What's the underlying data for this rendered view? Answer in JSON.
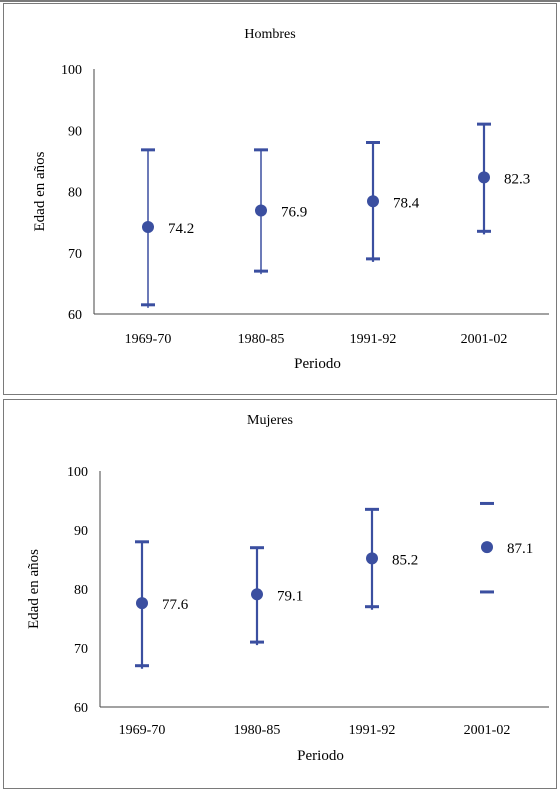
{
  "chart_data": [
    {
      "type": "scatter",
      "title": "Hombres",
      "xlabel": "Periodo",
      "ylabel": "Edad en años",
      "ylim": [
        60,
        100
      ],
      "yticks": [
        60,
        70,
        80,
        90,
        100
      ],
      "categories": [
        "1969-70",
        "1980-85",
        "1991-92",
        "2001-02"
      ],
      "values": [
        74.2,
        76.9,
        78.4,
        82.3
      ],
      "value_labels": [
        "74.2",
        "76.9",
        "78.4",
        "82.3"
      ],
      "lower": [
        61.5,
        67.0,
        69.0,
        73.5
      ],
      "upper": [
        86.8,
        86.8,
        88.0,
        91.0
      ],
      "error_bars": "vertical lines with horizontal caps",
      "grid": false,
      "color": "#3b4fa0"
    },
    {
      "type": "scatter",
      "title": "Mujeres",
      "xlabel": "Periodo",
      "ylabel": "Edad en años",
      "ylim": [
        60,
        100
      ],
      "yticks": [
        60,
        70,
        80,
        90,
        100
      ],
      "categories": [
        "1969-70",
        "1980-85",
        "1991-92",
        "2001-02"
      ],
      "values": [
        77.6,
        79.1,
        85.2,
        87.1
      ],
      "value_labels": [
        "77.6",
        "79.1",
        "85.2",
        "87.1"
      ],
      "lower": [
        67.0,
        71.0,
        77.0,
        79.5
      ],
      "upper": [
        88.0,
        87.0,
        93.5,
        94.5
      ],
      "error_bars": "vertical lines with horizontal caps; last period shows caps only",
      "grid": false,
      "color": "#3b4fa0"
    }
  ]
}
